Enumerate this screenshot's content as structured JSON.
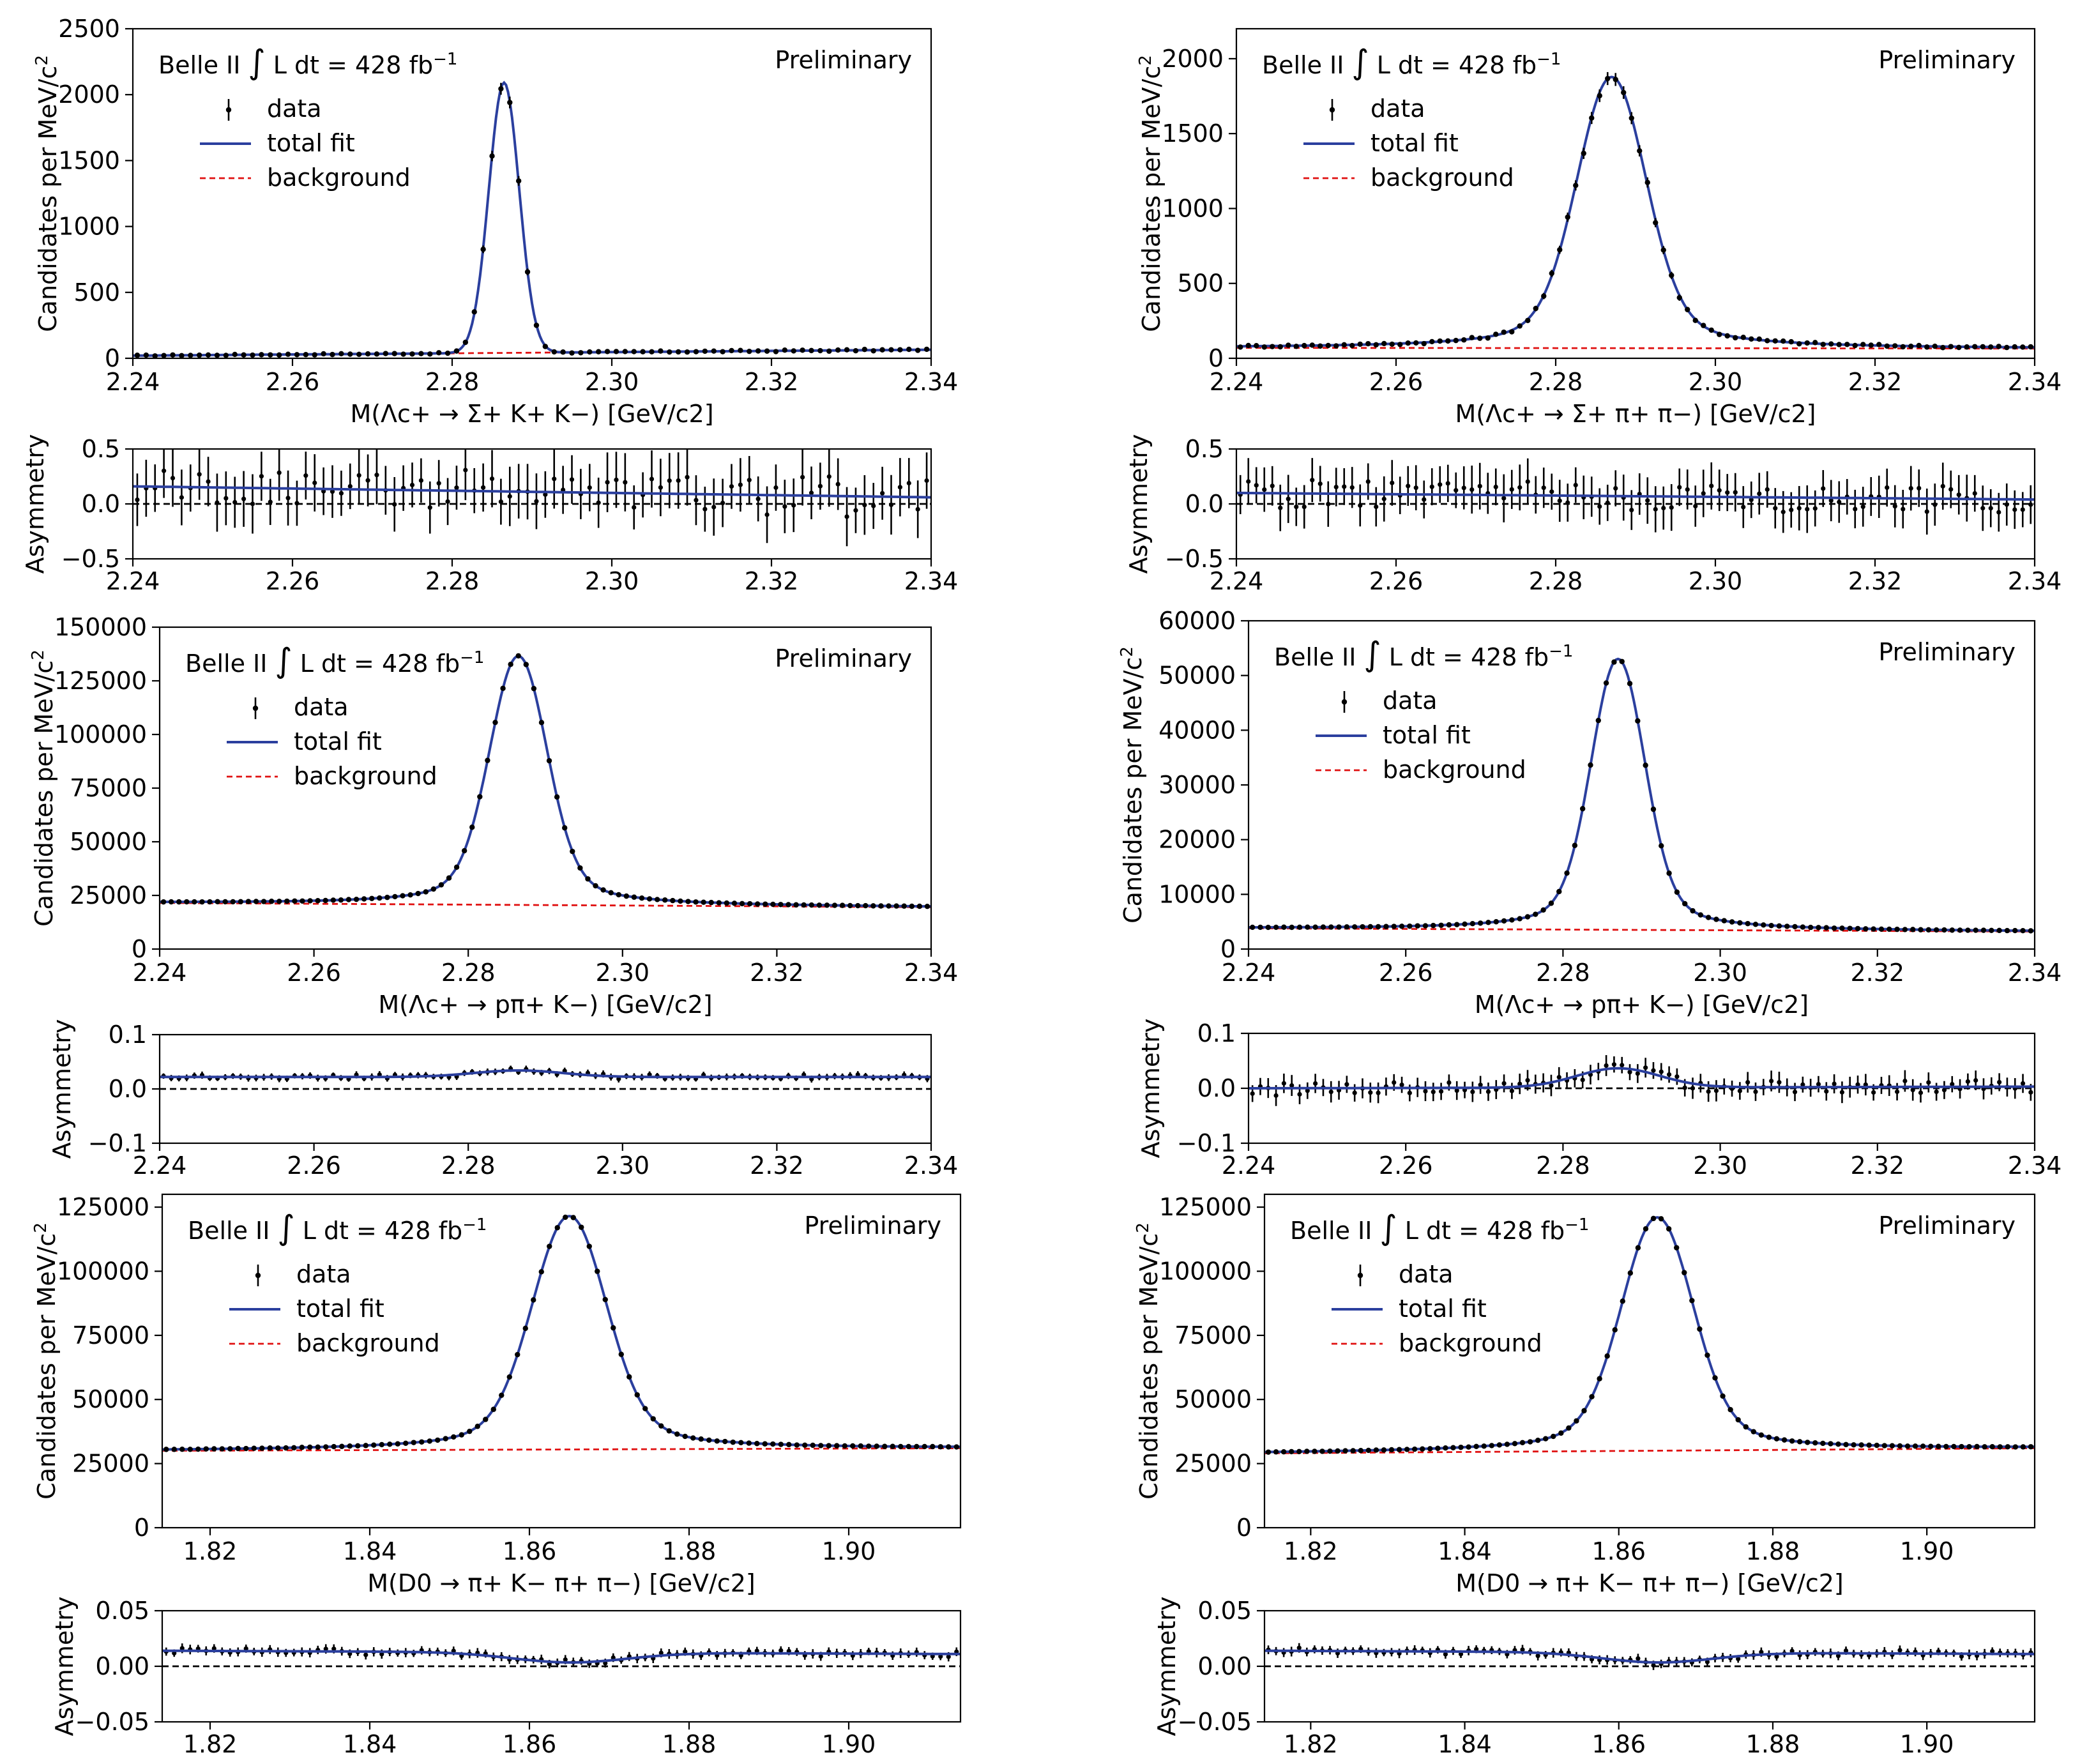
{
  "chart_data": [
    {
      "id": "sigma-kk",
      "type": "scatter",
      "legend": {
        "header": "Belle II",
        "integral": "∫",
        "lumi": "L dt = 428 fb",
        "lumi_exp": "−1",
        "entries": [
          "data",
          "total fit",
          "background"
        ],
        "placement": "top-left"
      },
      "preliminary": "Preliminary",
      "main": {
        "ylabel": "Candidates per MeV/c",
        "ylabel_exp": "2",
        "xlabel": "M(Λc+ → Σ+ K+ K−)  [GeV/c2]",
        "xlim": [
          2.24,
          2.34
        ],
        "ylim": [
          0,
          2500
        ],
        "xticks": [
          "2.24",
          "2.26",
          "2.28",
          "2.30",
          "2.32",
          "2.34"
        ],
        "yticks": [
          "0",
          "500",
          "1000",
          "1500",
          "2000",
          "2500"
        ],
        "peak": {
          "mean": 2.2865,
          "amplitude": 2050,
          "width": 0.0019,
          "shape": "gaussian"
        },
        "background": {
          "start": 20,
          "end": 65
        },
        "data_points": 90
      },
      "asym": {
        "ylabel": "Asymmetry",
        "ylim": [
          -0.5,
          0.5
        ],
        "yticks": [
          "−0.5",
          "0.0",
          "0.5"
        ],
        "xticks": [
          "2.24",
          "2.26",
          "2.28",
          "2.30",
          "2.32",
          "2.34"
        ],
        "fit_start": 0.16,
        "fit_end": 0.06,
        "bump": 0.0,
        "scatter": 0.25
      }
    },
    {
      "id": "sigma-pipi",
      "type": "scatter",
      "legend": {
        "header": "Belle II",
        "integral": "∫",
        "lumi": "L dt = 428 fb",
        "lumi_exp": "−1",
        "entries": [
          "data",
          "total fit",
          "background"
        ],
        "placement": "top-left"
      },
      "preliminary": "Preliminary",
      "main": {
        "ylabel": "Candidates per MeV/c",
        "ylabel_exp": "2",
        "xlabel": "M(Λc+ → Σ+ π+ π−)  [GeV/c2]",
        "xlim": [
          2.24,
          2.34
        ],
        "ylim": [
          0,
          2200
        ],
        "xticks": [
          "2.24",
          "2.26",
          "2.28",
          "2.30",
          "2.32",
          "2.34"
        ],
        "yticks": [
          "0",
          "500",
          "1000",
          "1500",
          "2000"
        ],
        "peak": {
          "mean": 2.287,
          "amplitude": 1810,
          "width": 0.0042,
          "shape": "gaussian-tail"
        },
        "background": {
          "start": 70,
          "end": 65
        },
        "data_points": 100
      },
      "asym": {
        "ylabel": "Asymmetry",
        "ylim": [
          -0.5,
          0.5
        ],
        "yticks": [
          "−0.5",
          "0.0",
          "0.5"
        ],
        "xticks": [
          "2.24",
          "2.26",
          "2.28",
          "2.30",
          "2.32",
          "2.34"
        ],
        "fit_start": 0.1,
        "fit_end": 0.04,
        "bump": 0.0,
        "scatter": 0.2
      }
    },
    {
      "id": "ppik-1",
      "type": "scatter",
      "legend": {
        "header": "Belle II",
        "integral": "∫",
        "lumi": "L dt = 428 fb",
        "lumi_exp": "−1",
        "entries": [
          "data",
          "total fit",
          "background"
        ],
        "placement": "top-left"
      },
      "preliminary": "Preliminary",
      "main": {
        "ylabel": "Candidates per MeV/c",
        "ylabel_exp": "2",
        "xlabel": "M(Λc+ → pπ+ K−)  [GeV/c2]",
        "xlim": [
          2.24,
          2.34
        ],
        "ylim": [
          0,
          150000
        ],
        "xticks": [
          "2.24",
          "2.26",
          "2.28",
          "2.30",
          "2.32",
          "2.34"
        ],
        "yticks": [
          "0",
          "25000",
          "50000",
          "75000",
          "100000",
          "125000",
          "150000"
        ],
        "peak": {
          "mean": 2.2865,
          "amplitude": 116000,
          "width": 0.0036,
          "shape": "gaussian-tail"
        },
        "background": {
          "start": 21500,
          "end": 19500
        },
        "data_points": 100
      },
      "asym": {
        "ylabel": "Asymmetry",
        "ylim": [
          -0.1,
          0.1
        ],
        "yticks": [
          "−0.1",
          "0.0",
          "0.1"
        ],
        "xticks": [
          "2.24",
          "2.26",
          "2.28",
          "2.30",
          "2.32",
          "2.34"
        ],
        "fit_start": 0.022,
        "fit_end": 0.022,
        "bump": 0.012,
        "scatter": 0.006
      }
    },
    {
      "id": "ppik-2",
      "type": "scatter",
      "legend": {
        "header": "Belle II",
        "integral": "∫",
        "lumi": "L dt = 428 fb",
        "lumi_exp": "−1",
        "entries": [
          "data",
          "total fit",
          "background"
        ],
        "placement": "top-left"
      },
      "preliminary": "Preliminary",
      "main": {
        "ylabel": "Candidates per MeV/c",
        "ylabel_exp": "2",
        "xlabel": "M(Λc+ → pπ+ K−)  [GeV/c2]",
        "xlim": [
          2.24,
          2.34
        ],
        "ylim": [
          0,
          60000
        ],
        "xticks": [
          "2.24",
          "2.26",
          "2.28",
          "2.30",
          "2.32",
          "2.34"
        ],
        "yticks": [
          "0",
          "10000",
          "20000",
          "30000",
          "40000",
          "50000",
          "60000"
        ],
        "peak": {
          "mean": 2.287,
          "amplitude": 49500,
          "width": 0.0033,
          "shape": "gaussian-tail"
        },
        "background": {
          "start": 3800,
          "end": 3200
        },
        "data_points": 100
      },
      "asym": {
        "ylabel": "Asymmetry",
        "ylim": [
          -0.1,
          0.1
        ],
        "yticks": [
          "−0.1",
          "0.0",
          "0.1"
        ],
        "xticks": [
          "2.24",
          "2.26",
          "2.28",
          "2.30",
          "2.32",
          "2.34"
        ],
        "fit_start": 0.0,
        "fit_end": 0.003,
        "bump": 0.035,
        "scatter": 0.018
      }
    },
    {
      "id": "d0-1",
      "type": "scatter",
      "legend": {
        "header": "Belle II",
        "integral": "∫",
        "lumi": "L dt = 428 fb",
        "lumi_exp": "−1",
        "entries": [
          "data",
          "total fit",
          "background"
        ],
        "placement": "top-left"
      },
      "preliminary": "Preliminary",
      "main": {
        "ylabel": "Candidates per MeV/c",
        "ylabel_exp": "2",
        "xlabel": "M(D0 → π+ K− π+ π−)  [GeV/c2]",
        "xlim": [
          1.814,
          1.914
        ],
        "ylim": [
          0,
          130000
        ],
        "xticks": [
          "1.82",
          "1.84",
          "1.86",
          "1.88",
          "1.90"
        ],
        "yticks": [
          "0",
          "25000",
          "50000",
          "75000",
          "100000",
          "125000"
        ],
        "peak": {
          "mean": 1.865,
          "amplitude": 91000,
          "width": 0.0045,
          "shape": "gaussian-tail"
        },
        "background": {
          "start": 30000,
          "end": 31000
        },
        "data_points": 100
      },
      "asym": {
        "ylabel": "Asymmetry",
        "ylim": [
          -0.05,
          0.05
        ],
        "yticks": [
          "−0.05",
          "0.00",
          "0.05"
        ],
        "xticks": [
          "1.82",
          "1.84",
          "1.86",
          "1.88",
          "1.90"
        ],
        "fit_start": 0.014,
        "fit_end": 0.011,
        "bump": -0.009,
        "scatter": 0.004
      }
    },
    {
      "id": "d0-2",
      "type": "scatter",
      "legend": {
        "header": "Belle II",
        "integral": "∫",
        "lumi": "L dt = 428 fb",
        "lumi_exp": "−1",
        "entries": [
          "data",
          "total fit",
          "background"
        ],
        "placement": "top-left"
      },
      "preliminary": "Preliminary",
      "main": {
        "ylabel": "Candidates per MeV/c",
        "ylabel_exp": "2",
        "xlabel": "M(D0 → π+ K− π+ π−)  [GeV/c2]",
        "xlim": [
          1.814,
          1.914
        ],
        "ylim": [
          0,
          130000
        ],
        "xticks": [
          "1.82",
          "1.84",
          "1.86",
          "1.88",
          "1.90"
        ],
        "yticks": [
          "0",
          "25000",
          "50000",
          "75000",
          "100000",
          "125000"
        ],
        "peak": {
          "mean": 1.865,
          "amplitude": 91000,
          "width": 0.0045,
          "shape": "gaussian-tail"
        },
        "background": {
          "start": 29000,
          "end": 31000
        },
        "data_points": 100
      },
      "asym": {
        "ylabel": "Asymmetry",
        "ylim": [
          -0.05,
          0.05
        ],
        "yticks": [
          "−0.05",
          "0.00",
          "0.05"
        ],
        "xticks": [
          "1.82",
          "1.84",
          "1.86",
          "1.88",
          "1.90"
        ],
        "fit_start": 0.014,
        "fit_end": 0.011,
        "bump": -0.009,
        "scatter": 0.004
      }
    }
  ],
  "colors": {
    "data": "#000000",
    "fit": "#2b3f9e",
    "background": "#e01010",
    "zero_line": "#000000"
  }
}
